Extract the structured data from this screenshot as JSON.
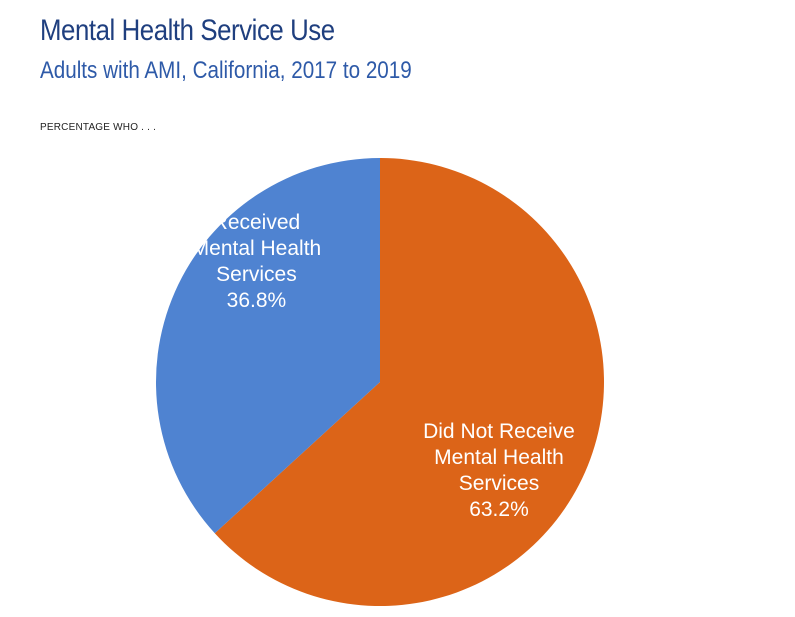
{
  "title": "Mental Health Service Use",
  "subtitle": "Adults with AMI, California, 2017 to 2019",
  "caption": "PERCENTAGE WHO . . .",
  "chart_data": {
    "type": "pie",
    "slices": [
      {
        "label_lines": [
          "Received",
          "Mental Health",
          "Services"
        ],
        "value_label": "36.8%",
        "value": 36.8,
        "color": "#4f83d1"
      },
      {
        "label_lines": [
          "Did Not Receive",
          "Mental Health",
          "Services"
        ],
        "value_label": "63.2%",
        "value": 63.2,
        "color": "#dc6418"
      }
    ],
    "start": "12 o'clock",
    "direction": "clockwise, second slice first",
    "legend": "none (labels inside slices)"
  }
}
